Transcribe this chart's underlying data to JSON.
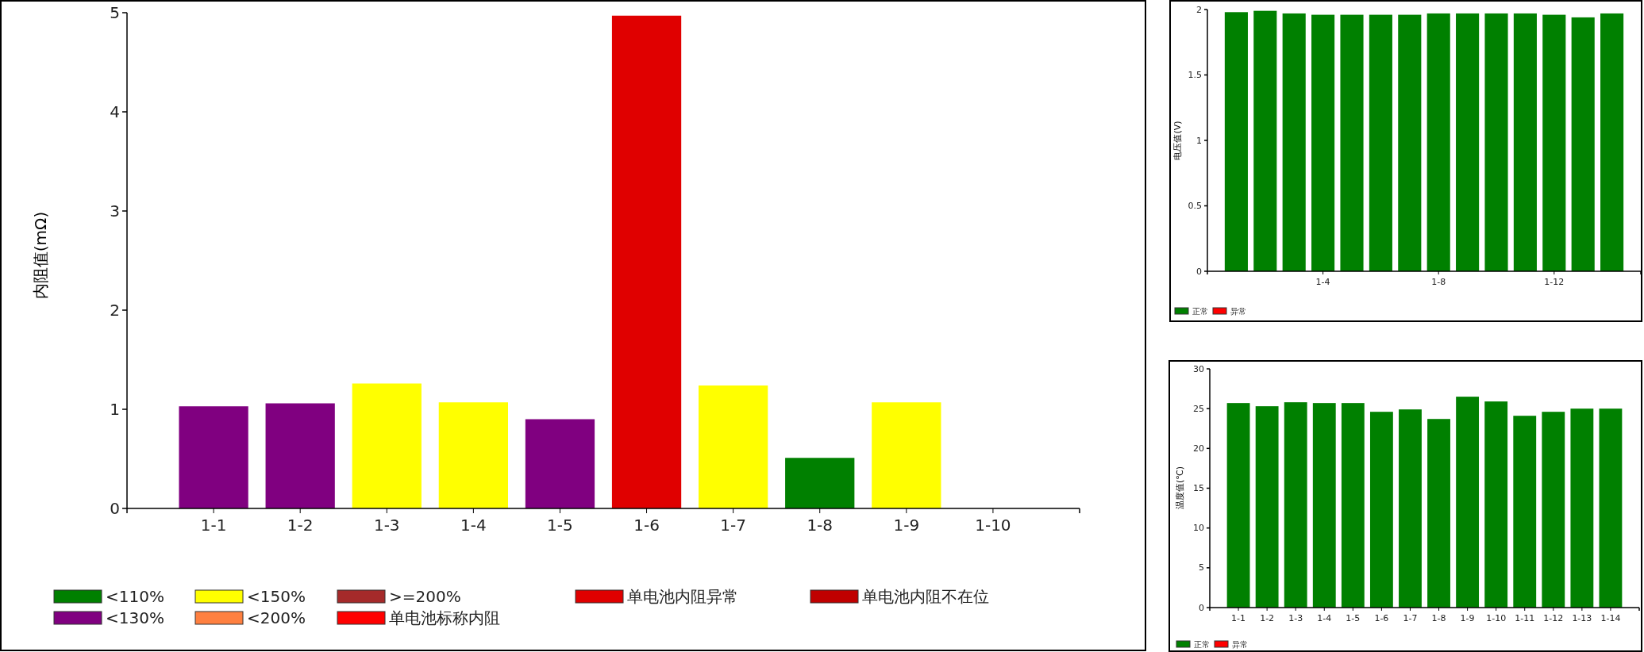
{
  "chart_data": [
    {
      "type": "bar",
      "stacked": true,
      "categories": [
        "1-1",
        "1-2",
        "1-3",
        "1-4",
        "1-5",
        "1-6",
        "1-7",
        "1-8",
        "1-9",
        "1-10"
      ],
      "ylabel": "内阻值(mΩ)",
      "ylim": [
        0,
        5
      ],
      "yticks": [
        0,
        1,
        2,
        3,
        4,
        5
      ],
      "legend": "bottom",
      "series": [
        {
          "name": "<110%",
          "color": "#008000",
          "values": [
            null,
            null,
            null,
            null,
            null,
            null,
            null,
            0.51,
            null,
            null
          ]
        },
        {
          "name": "<150%",
          "color": "#ffff00",
          "values": [
            null,
            null,
            1.26,
            1.07,
            null,
            null,
            1.24,
            null,
            1.07,
            null
          ]
        },
        {
          "name": ">=200%",
          "color": "#a52a2a",
          "values": [
            null,
            null,
            null,
            null,
            null,
            null,
            null,
            null,
            null,
            null
          ]
        },
        {
          "name": "单电池内阻异常",
          "color": "#e00000",
          "values": [
            null,
            null,
            null,
            null,
            null,
            4.97,
            null,
            null,
            null,
            null
          ]
        },
        {
          "name": "单电池内阻不在位",
          "color": "#c00000",
          "values": [
            null,
            null,
            null,
            null,
            null,
            null,
            null,
            null,
            null,
            null
          ]
        },
        {
          "name": "<130%",
          "color": "#800080",
          "values": [
            1.03,
            1.06,
            null,
            null,
            0.9,
            null,
            null,
            null,
            null,
            null
          ]
        },
        {
          "name": "<200%",
          "color": "#ff8040",
          "values": [
            null,
            null,
            null,
            null,
            null,
            null,
            null,
            null,
            null,
            null
          ]
        },
        {
          "name": "单电池标称内阻",
          "color": "#ff0000",
          "values": [
            null,
            null,
            null,
            null,
            null,
            null,
            null,
            null,
            null,
            null
          ]
        }
      ]
    },
    {
      "type": "bar",
      "stacked": true,
      "categories": [
        null,
        null,
        null,
        "1-4",
        null,
        null,
        null,
        "1-8",
        null,
        null,
        null,
        "1-12",
        null,
        null
      ],
      "ylabel": "电压值(V)",
      "ylim": [
        0,
        2
      ],
      "yticks": [
        0,
        0.5,
        1,
        1.5,
        2
      ],
      "legend": "bottom left",
      "series": [
        {
          "name": "正常",
          "color": "#008000",
          "values": [
            1.98,
            1.99,
            1.97,
            1.96,
            1.96,
            1.96,
            1.96,
            1.97,
            1.97,
            1.97,
            1.97,
            1.96,
            1.94,
            1.97
          ]
        },
        {
          "name": "异常",
          "color": "#ff0000",
          "values": [
            null,
            null,
            null,
            null,
            null,
            null,
            null,
            null,
            null,
            null,
            null,
            null,
            null,
            null
          ]
        }
      ]
    },
    {
      "type": "bar",
      "stacked": true,
      "categories": [
        "1-1",
        "1-2",
        "1-3",
        "1-4",
        "1-5",
        "1-6",
        "1-7",
        "1-8",
        "1-9",
        "1-10",
        "1-11",
        "1-12",
        "1-13",
        "1-14"
      ],
      "ylabel": "温度值(℃)",
      "ylim": [
        0,
        30
      ],
      "yticks": [
        0,
        5,
        10,
        15,
        20,
        25,
        30
      ],
      "legend": "bottom left",
      "series": [
        {
          "name": "正常",
          "color": "#008000",
          "values": [
            25.7,
            25.3,
            25.8,
            25.7,
            25.7,
            24.6,
            24.9,
            23.7,
            26.5,
            25.9,
            24.1,
            24.6,
            25.0,
            25.0
          ]
        },
        {
          "name": "异常",
          "color": "#ff0000",
          "values": [
            null,
            null,
            null,
            null,
            null,
            null,
            null,
            null,
            null,
            null,
            null,
            null,
            null,
            null
          ]
        }
      ]
    }
  ]
}
